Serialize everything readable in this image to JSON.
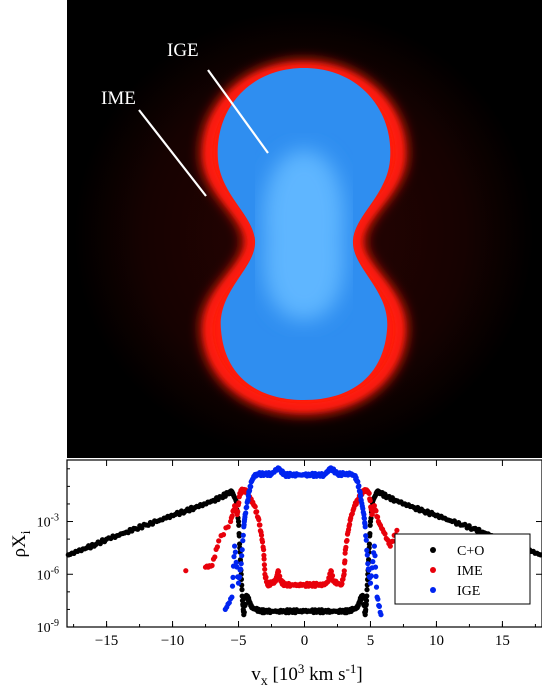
{
  "image_panel": {
    "labels": [
      {
        "text": "IGE"
      },
      {
        "text": "IME"
      }
    ],
    "colors": {
      "background": "#000000",
      "ime": "#ff1a10",
      "ige": "#2f8ef0",
      "ige_core": "#5fb6ff",
      "pointer": "#ffffff"
    }
  },
  "chart_data": {
    "type": "scatter",
    "xlabel_main": "v",
    "xlabel_sub": "x",
    "xlabel_open": " [10",
    "xlabel_exp": "3",
    "xlabel_mid": " km s",
    "xlabel_exp2": "-1",
    "xlabel_close": "]",
    "ylabel_main": "ρX",
    "ylabel_sub": "i",
    "xlim": [
      -18,
      18
    ],
    "ylim_log10": [
      -9,
      0.5
    ],
    "log_y": true,
    "xticks": [
      -15,
      -10,
      -5,
      0,
      5,
      10,
      15
    ],
    "xtick_labels": [
      "−15",
      "−10",
      "−5",
      "0",
      "5",
      "10",
      "15"
    ],
    "yticks_log10": [
      -9,
      -6,
      -3
    ],
    "ytick_base": "10",
    "ytick_exps": [
      "-9",
      "-6",
      "-3"
    ],
    "legend_position": "lower-right",
    "series": [
      {
        "name": "C+O",
        "color": "#000000",
        "points": [
          [
            -17.9,
            -4.9
          ],
          [
            -17.2,
            -4.7
          ],
          [
            -16.5,
            -4.5
          ],
          [
            -15.8,
            -4.3
          ],
          [
            -15.0,
            -4.0
          ],
          [
            -14.2,
            -3.8
          ],
          [
            -13.5,
            -3.6
          ],
          [
            -12.8,
            -3.4
          ],
          [
            -12.0,
            -3.2
          ],
          [
            -11.2,
            -3.0
          ],
          [
            -10.5,
            -2.8
          ],
          [
            -9.8,
            -2.6
          ],
          [
            -9.0,
            -2.4
          ],
          [
            -8.3,
            -2.2
          ],
          [
            -7.6,
            -2.0
          ],
          [
            -6.9,
            -1.8
          ],
          [
            -6.3,
            -1.6
          ],
          [
            -5.8,
            -1.4
          ],
          [
            -5.5,
            -1.3
          ],
          [
            -5.2,
            -1.8
          ],
          [
            -5.0,
            -3.0
          ],
          [
            -4.9,
            -4.5
          ],
          [
            -4.8,
            -6.0
          ],
          [
            -4.7,
            -7.5
          ],
          [
            -4.6,
            -8.3
          ],
          [
            -4.4,
            -7.2
          ],
          [
            -4.2,
            -7.5
          ],
          [
            -4.0,
            -7.9
          ],
          [
            -3.7,
            -8.0
          ],
          [
            -3.3,
            -8.1
          ],
          [
            -3.0,
            -8.1
          ],
          [
            -2.5,
            -8.1
          ],
          [
            -2.0,
            -8.1
          ],
          [
            -1.5,
            -8.1
          ],
          [
            -1.0,
            -8.1
          ],
          [
            -0.5,
            -8.1
          ],
          [
            0.0,
            -8.1
          ],
          [
            0.5,
            -8.1
          ],
          [
            1.0,
            -8.1
          ],
          [
            1.5,
            -8.1
          ],
          [
            2.0,
            -8.1
          ],
          [
            2.5,
            -8.1
          ],
          [
            3.0,
            -8.1
          ],
          [
            3.3,
            -8.1
          ],
          [
            3.7,
            -8.0
          ],
          [
            4.0,
            -7.9
          ],
          [
            4.2,
            -7.5
          ],
          [
            4.4,
            -7.2
          ],
          [
            4.6,
            -8.3
          ],
          [
            4.7,
            -7.5
          ],
          [
            4.8,
            -6.0
          ],
          [
            4.9,
            -4.5
          ],
          [
            5.0,
            -3.0
          ],
          [
            5.2,
            -1.8
          ],
          [
            5.5,
            -1.3
          ],
          [
            5.8,
            -1.4
          ],
          [
            6.3,
            -1.6
          ],
          [
            6.9,
            -1.8
          ],
          [
            7.6,
            -2.0
          ],
          [
            8.3,
            -2.2
          ],
          [
            9.0,
            -2.4
          ],
          [
            9.8,
            -2.6
          ],
          [
            10.5,
            -2.8
          ],
          [
            11.2,
            -3.0
          ],
          [
            12.0,
            -3.2
          ],
          [
            12.8,
            -3.4
          ],
          [
            13.5,
            -3.6
          ],
          [
            14.2,
            -3.8
          ],
          [
            15.0,
            -4.0
          ],
          [
            15.8,
            -4.3
          ],
          [
            16.5,
            -4.5
          ],
          [
            17.2,
            -4.7
          ],
          [
            17.9,
            -4.9
          ]
        ]
      },
      {
        "name": "IME",
        "color": "#e8000b",
        "points": [
          [
            -9.0,
            -5.8
          ],
          [
            -7.5,
            -5.6
          ],
          [
            -7.0,
            -5.5
          ],
          [
            -6.5,
            -4.1
          ],
          [
            -5.6,
            -3.0
          ],
          [
            -5.3,
            -2.1
          ],
          [
            -5.1,
            -2.6
          ],
          [
            -4.9,
            -1.4
          ],
          [
            -4.7,
            -1.2
          ],
          [
            -4.4,
            -1.3
          ],
          [
            -4.1,
            -1.7
          ],
          [
            -3.8,
            -2.1
          ],
          [
            -3.5,
            -2.8
          ],
          [
            -3.3,
            -3.6
          ],
          [
            -3.1,
            -4.6
          ],
          [
            -3.0,
            -6.0
          ],
          [
            -2.8,
            -6.6
          ],
          [
            -2.5,
            -6.5
          ],
          [
            -2.2,
            -6.4
          ],
          [
            -2.0,
            -5.8
          ],
          [
            -1.8,
            -6.4
          ],
          [
            -1.5,
            -6.6
          ],
          [
            -1.0,
            -6.6
          ],
          [
            -0.5,
            -6.6
          ],
          [
            0.0,
            -6.6
          ],
          [
            0.5,
            -6.6
          ],
          [
            1.0,
            -6.6
          ],
          [
            1.5,
            -6.6
          ],
          [
            1.8,
            -6.4
          ],
          [
            2.0,
            -5.8
          ],
          [
            2.2,
            -6.4
          ],
          [
            2.5,
            -6.5
          ],
          [
            2.8,
            -6.6
          ],
          [
            3.0,
            -6.0
          ],
          [
            3.1,
            -4.6
          ],
          [
            3.3,
            -3.6
          ],
          [
            3.5,
            -2.8
          ],
          [
            3.8,
            -2.1
          ],
          [
            4.1,
            -1.7
          ],
          [
            4.4,
            -1.3
          ],
          [
            4.7,
            -1.2
          ],
          [
            4.9,
            -1.4
          ],
          [
            5.1,
            -2.6
          ],
          [
            5.3,
            -2.1
          ],
          [
            5.6,
            -3.0
          ],
          [
            6.0,
            -3.6
          ],
          [
            6.5,
            -4.4
          ],
          [
            7.0,
            -3.5
          ]
        ]
      },
      {
        "name": "IGE",
        "color": "#0024f0",
        "points": [
          [
            -6.0,
            -8.0
          ],
          [
            -5.5,
            -7.3
          ],
          [
            -5.3,
            -4.4
          ],
          [
            -5.0,
            -6.5
          ],
          [
            -4.8,
            -5.4
          ],
          [
            -4.6,
            -3.3
          ],
          [
            -4.5,
            -2.6
          ],
          [
            -4.3,
            -1.8
          ],
          [
            -4.2,
            -1.3
          ],
          [
            -4.0,
            -0.7
          ],
          [
            -3.8,
            -0.4
          ],
          [
            -3.5,
            -0.3
          ],
          [
            -3.0,
            -0.3
          ],
          [
            -2.5,
            -0.3
          ],
          [
            -2.0,
            0.05
          ],
          [
            -1.8,
            -0.1
          ],
          [
            -1.5,
            -0.35
          ],
          [
            -1.0,
            -0.35
          ],
          [
            -0.5,
            -0.35
          ],
          [
            0.0,
            -0.35
          ],
          [
            0.5,
            -0.35
          ],
          [
            1.0,
            -0.35
          ],
          [
            1.5,
            -0.35
          ],
          [
            1.8,
            -0.1
          ],
          [
            2.0,
            0.05
          ],
          [
            2.5,
            -0.3
          ],
          [
            3.0,
            -0.3
          ],
          [
            3.5,
            -0.3
          ],
          [
            3.8,
            -0.4
          ],
          [
            4.0,
            -0.7
          ],
          [
            4.2,
            -1.3
          ],
          [
            4.3,
            -1.8
          ],
          [
            4.5,
            -2.6
          ],
          [
            4.6,
            -3.3
          ],
          [
            4.8,
            -5.4
          ],
          [
            5.0,
            -6.5
          ],
          [
            5.3,
            -4.4
          ],
          [
            5.5,
            -7.3
          ],
          [
            5.8,
            -8.3
          ]
        ]
      }
    ]
  }
}
